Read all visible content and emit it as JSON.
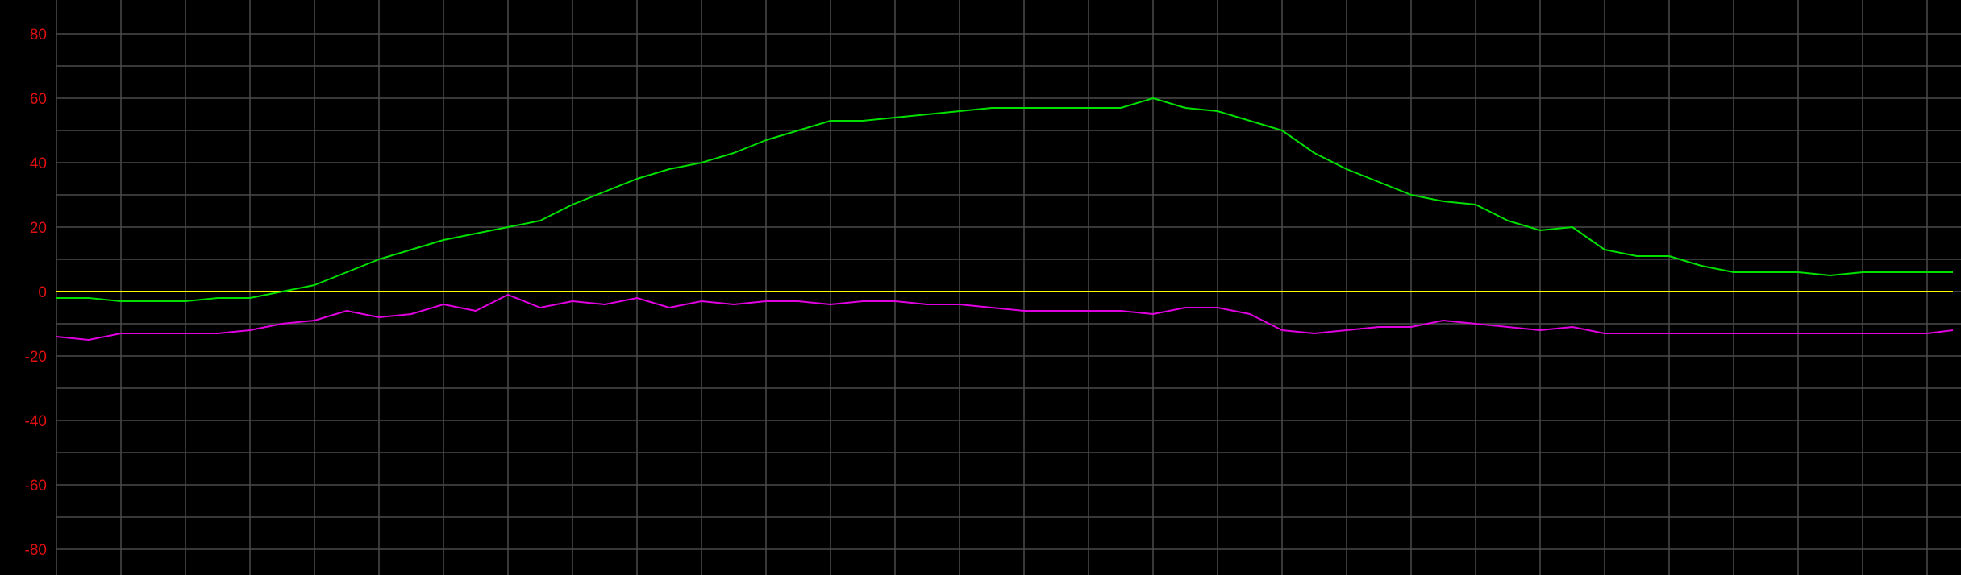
{
  "colors": {
    "background": "#000000",
    "grid": "#4a4a4a",
    "tick_label": "#e01010",
    "zero_line": "#ffff00",
    "green_series": "#00e000",
    "magenta_series": "#e000e0"
  },
  "chart_data": {
    "type": "line",
    "title": "",
    "xlabel": "",
    "ylabel": "",
    "ylim": [
      -88,
      88
    ],
    "xlim": [
      0,
      30
    ],
    "grid": true,
    "y_ticks": [
      80,
      60,
      40,
      20,
      0,
      -20,
      -40,
      -60,
      -80
    ],
    "y_tick_labels": [
      "80",
      "60",
      "40",
      "20",
      "0",
      "-20",
      "-40",
      "-60",
      "-80"
    ],
    "x_grid_lines": 30,
    "zero_line": 0,
    "series": [
      {
        "color": "#00e000",
        "x": [
          0,
          0.5,
          1,
          1.5,
          2,
          2.5,
          3,
          3.5,
          4,
          4.5,
          5,
          5.5,
          6,
          6.5,
          7,
          7.5,
          8,
          8.5,
          9,
          9.5,
          10,
          10.5,
          11,
          11.5,
          12,
          12.5,
          13,
          13.5,
          14,
          14.5,
          15,
          15.5,
          16,
          16.5,
          17,
          17.5,
          18,
          18.5,
          19,
          19.5,
          20,
          20.5,
          21,
          21.5,
          22,
          22.5,
          23,
          23.5,
          24,
          24.5,
          25,
          25.5,
          26,
          26.5,
          27,
          27.5,
          28,
          28.5,
          29,
          29.4
        ],
        "values": [
          -2,
          -2,
          -3,
          -3,
          -3,
          -2,
          -2,
          0,
          2,
          6,
          10,
          13,
          16,
          18,
          20,
          22,
          27,
          31,
          35,
          38,
          40,
          43,
          47,
          50,
          53,
          53,
          54,
          55,
          56,
          57,
          57,
          57,
          57,
          57,
          60,
          57,
          56,
          53,
          50,
          43,
          38,
          34,
          30,
          28,
          27,
          22,
          19,
          20,
          13,
          11,
          11,
          8,
          6,
          6,
          6,
          5,
          6,
          6,
          6,
          6
        ]
      },
      {
        "color": "#e000e0",
        "x": [
          0,
          0.5,
          1,
          1.5,
          2,
          2.5,
          3,
          3.5,
          4,
          4.5,
          5,
          5.5,
          6,
          6.5,
          7,
          7.5,
          8,
          8.5,
          9,
          9.5,
          10,
          10.5,
          11,
          11.5,
          12,
          12.5,
          13,
          13.5,
          14,
          14.5,
          15,
          15.5,
          16,
          16.5,
          17,
          17.5,
          18,
          18.5,
          19,
          19.5,
          20,
          20.5,
          21,
          21.5,
          22,
          22.5,
          23,
          23.5,
          24,
          24.5,
          25,
          25.5,
          26,
          26.5,
          27,
          27.5,
          28,
          28.5,
          29,
          29.4
        ],
        "values": [
          -14,
          -15,
          -13,
          -13,
          -13,
          -13,
          -12,
          -10,
          -9,
          -6,
          -8,
          -7,
          -4,
          -6,
          -1,
          -5,
          -3,
          -4,
          -2,
          -5,
          -3,
          -4,
          -3,
          -3,
          -4,
          -3,
          -3,
          -4,
          -4,
          -5,
          -6,
          -6,
          -6,
          -6,
          -7,
          -5,
          -5,
          -7,
          -12,
          -13,
          -12,
          -11,
          -11,
          -9,
          -10,
          -11,
          -12,
          -11,
          -13,
          -13,
          -13,
          -13,
          -13,
          -13,
          -13,
          -13,
          -13,
          -13,
          -13,
          -12
        ]
      }
    ]
  }
}
